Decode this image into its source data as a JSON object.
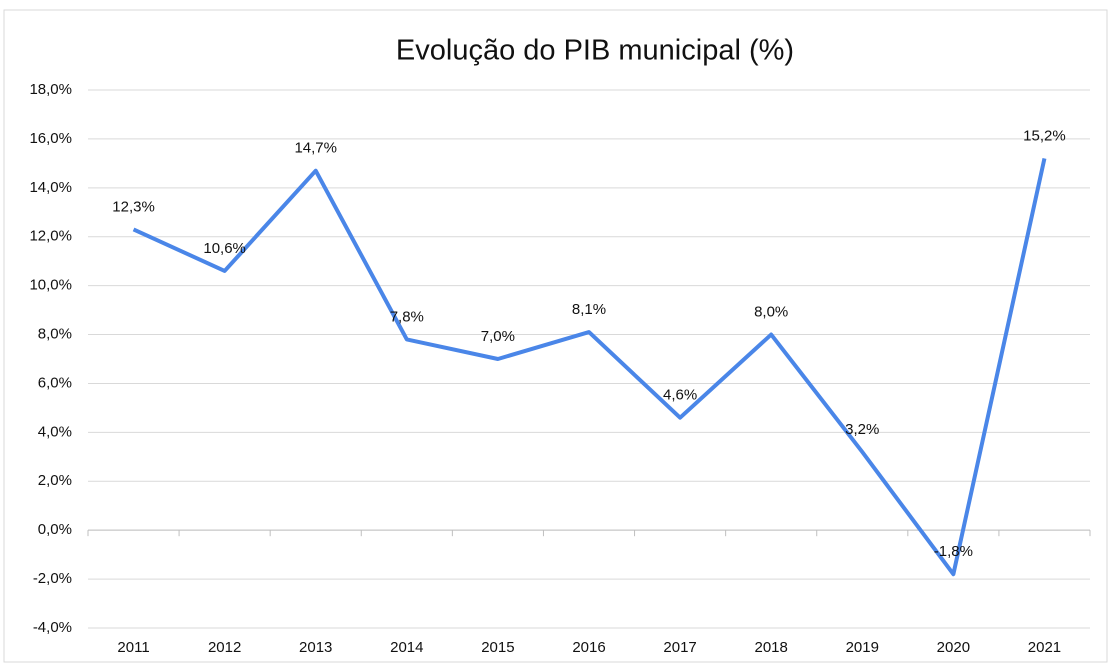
{
  "chart_data": {
    "type": "line",
    "title": "Evolução do PIB municipal (%)",
    "categories": [
      "2011",
      "2012",
      "2013",
      "2014",
      "2015",
      "2016",
      "2017",
      "2018",
      "2019",
      "2020",
      "2021"
    ],
    "values": [
      12.3,
      10.6,
      14.7,
      7.8,
      7.0,
      8.1,
      4.6,
      8.0,
      3.2,
      -1.8,
      15.2
    ],
    "value_labels": [
      "12,3%",
      "10,6%",
      "14,7%",
      "7,8%",
      "7,0%",
      "8,1%",
      "4,6%",
      "8,0%",
      "3,2%",
      "-1,8%",
      "15,2%"
    ],
    "color": "#4a86e8",
    "ylim": [
      -4,
      18
    ],
    "yticks": [
      {
        "value": -4,
        "label": "-4,0%"
      },
      {
        "value": -2,
        "label": "-2,0%"
      },
      {
        "value": 0,
        "label": "0,0%"
      },
      {
        "value": 2,
        "label": "2,0%"
      },
      {
        "value": 4,
        "label": "4,0%"
      },
      {
        "value": 6,
        "label": "6,0%"
      },
      {
        "value": 8,
        "label": "8,0%"
      },
      {
        "value": 10,
        "label": "10,0%"
      },
      {
        "value": 12,
        "label": "12,0%"
      },
      {
        "value": 14,
        "label": "14,0%"
      },
      {
        "value": 16,
        "label": "16,0%"
      },
      {
        "value": 18,
        "label": "18,0%"
      }
    ],
    "grid": true
  }
}
